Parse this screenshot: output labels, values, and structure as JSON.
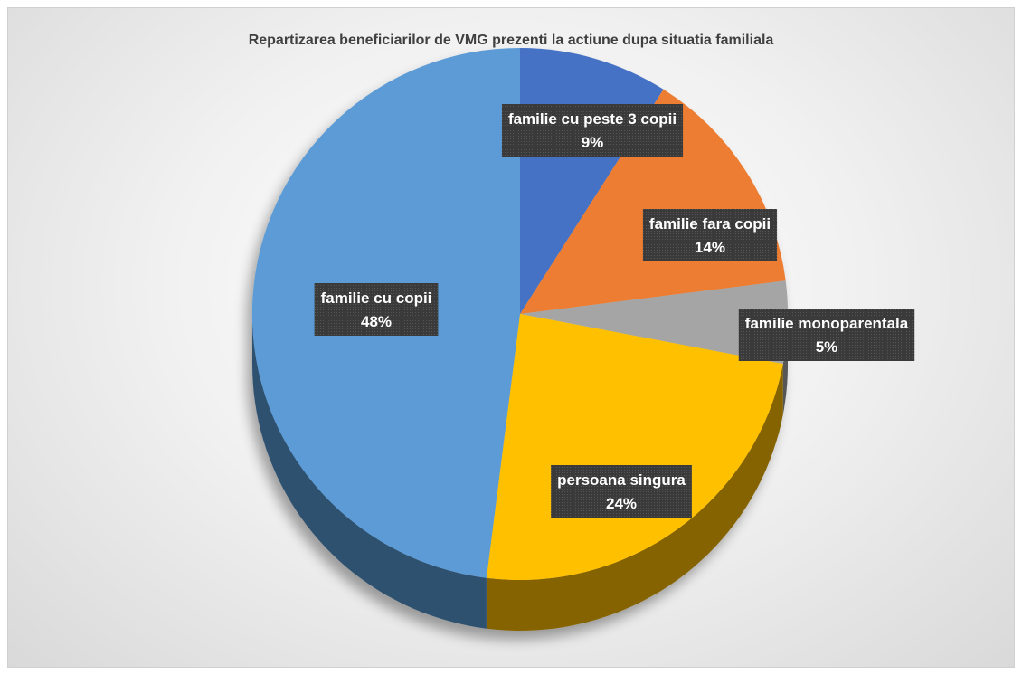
{
  "chart_data": {
    "type": "pie",
    "title": "Repartizarea beneficiarilor de VMG prezenti la actiune dupa situatia familiala",
    "legend": "none",
    "slices": [
      {
        "label": "familie cu peste 3 copii",
        "value_label": "9%",
        "value": 9,
        "color": "#4472C4"
      },
      {
        "label": "familie fara copii",
        "value_label": "14%",
        "value": 14,
        "color": "#ED7D31"
      },
      {
        "label": "familie monoparentala",
        "value_label": "5%",
        "value": 5,
        "color": "#A5A5A5"
      },
      {
        "label": "persoana singura",
        "value_label": "24%",
        "value": 24,
        "color": "#FFC000"
      },
      {
        "label": "familie cu copii",
        "value_label": "48%",
        "value": 48,
        "color": "#5B9BD5"
      }
    ]
  }
}
